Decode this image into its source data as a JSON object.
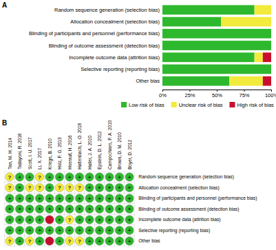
{
  "chart_data": [
    {
      "type": "bar",
      "title": "A",
      "orientation": "horizontal",
      "stacked": true,
      "legend": "bottom",
      "categories": [
        "Random sequence generation (selection bias)",
        "Allocation concealment (selection bias)",
        "Blinding of participants and personnel (performance bias)",
        "Blinding of outcome assessment (detection bias)",
        "Incomplete outcome data (attrition bias)",
        "Selective reporting (reporting bias)",
        "Other bias"
      ],
      "series": [
        {
          "name": "Low risk of bias",
          "color": "#2eb82e",
          "values": [
            84.6,
            53.8,
            100,
            100,
            84.6,
            100,
            61.5
          ]
        },
        {
          "name": "Unclear risk of bias",
          "color": "#f2ea3c",
          "values": [
            15.4,
            46.2,
            0,
            0,
            7.7,
            0,
            30.8
          ]
        },
        {
          "name": "High risk of bias",
          "color": "#c8102e",
          "values": [
            0,
            0,
            0,
            0,
            7.7,
            0,
            7.7
          ]
        }
      ],
      "xlim": [
        0,
        100
      ],
      "xticks": [
        {
          "value": 0,
          "label": "0%"
        },
        {
          "value": 25,
          "label": "25%"
        },
        {
          "value": 50,
          "label": "50%"
        },
        {
          "value": 75,
          "label": "75%"
        },
        {
          "value": 100,
          "label": "100%"
        }
      ]
    },
    {
      "type": "summary",
      "title": "B",
      "columns": [
        "Tan, M. H. 2014",
        "Tadayoni, R. 2016",
        "Scott, I. U. 2017",
        "Li, X. 2017",
        "Kriege, B. 2010",
        "Holz, F. G. 2013",
        "Hoerauf, H. 2016",
        "Hattenbach, L. O. 2018",
        "Haller, J. A. 2010",
        "Epstein, D. L. 2012",
        "Campochiaro, P. A. 2010",
        "Brown, D. M. 2010",
        "Boyer, D. 2012"
      ],
      "rows": [
        "Random sequence generation (selection bias)",
        "Allocation concealment (selection bias)",
        "Blinding of participants and personnel (performance bias)",
        "Blinding of outcome assessment (detection bias)",
        "Incomplete outcome data (attrition bias)",
        "Selective reporting (reporting bias)",
        "Other bias"
      ],
      "cells": [
        [
          "?",
          "+",
          "+",
          "?",
          "+",
          "+",
          "+",
          "+",
          "+",
          "+",
          "+",
          "+",
          "+"
        ],
        [
          "?",
          "+",
          "?",
          "?",
          "+",
          "?",
          "?",
          "?",
          "+",
          "+",
          "+",
          "+",
          "+"
        ],
        [
          "+",
          "+",
          "+",
          "+",
          "+",
          "+",
          "+",
          "+",
          "+",
          "+",
          "+",
          "+",
          "+"
        ],
        [
          "+",
          "+",
          "+",
          "+",
          "+",
          "+",
          "+",
          "+",
          "+",
          "+",
          "+",
          "+",
          "+"
        ],
        [
          "+",
          "+",
          "+",
          "+",
          "-",
          "+",
          "?",
          "+",
          "+",
          "+",
          "+",
          "+",
          "+"
        ],
        [
          "+",
          "+",
          "+",
          "+",
          "+",
          "+",
          "+",
          "+",
          "+",
          "+",
          "+",
          "+",
          "+"
        ],
        [
          "?",
          "+",
          "?",
          "+",
          "-",
          "+",
          "?",
          "?",
          "+",
          "+",
          "+",
          "+",
          "+"
        ]
      ],
      "colors": [
        [
          "#f2ea3c",
          "#2eb82e",
          "#2eb82e",
          "#f2ea3c",
          "#2eb82e",
          "#2eb82e",
          "#2eb82e",
          "#2eb82e",
          "#2eb82e",
          "#2eb82e",
          "#2eb82e",
          "#2eb82e",
          "#2eb82e"
        ],
        [
          "#f2ea3c",
          "#2eb82e",
          "#f2ea3c",
          "#f2ea3c",
          "#2eb82e",
          "#f2ea3c",
          "#f2ea3c",
          "#f2ea3c",
          "#2eb82e",
          "#2eb82e",
          "#2eb82e",
          "#2eb82e",
          "#2eb82e"
        ],
        [
          "#2eb82e",
          "#2eb82e",
          "#2eb82e",
          "#2eb82e",
          "#2eb82e",
          "#2eb82e",
          "#2eb82e",
          "#2eb82e",
          "#2eb82e",
          "#2eb82e",
          "#2eb82e",
          "#2eb82e",
          "#2eb82e"
        ],
        [
          "#2eb82e",
          "#2eb82e",
          "#2eb82e",
          "#2eb82e",
          "#2eb82e",
          "#2eb82e",
          "#2eb82e",
          "#2eb82e",
          "#2eb82e",
          "#2eb82e",
          "#2eb82e",
          "#2eb82e",
          "#2eb82e"
        ],
        [
          "#2eb82e",
          "#2eb82e",
          "#2eb82e",
          "#2eb82e",
          "#c8102e",
          "#2eb82e",
          "#f2ea3c",
          "#2eb82e",
          "#2eb82e",
          "#2eb82e",
          "#2eb82e",
          "#2eb82e",
          "#2eb82e"
        ],
        [
          "#2eb82e",
          "#2eb82e",
          "#2eb82e",
          "#2eb82e",
          "#2eb82e",
          "#2eb82e",
          "#2eb82e",
          "#2eb82e",
          "#2eb82e",
          "#2eb82e",
          "#2eb82e",
          "#2eb82e",
          "#2eb82e"
        ],
        [
          "#f2ea3c",
          "#2eb82e",
          "#f2ea3c",
          "#2eb82e",
          "#c8102e",
          "#2eb82e",
          "#f2ea3c",
          "#f2ea3c",
          "#2eb82e",
          "#2eb82e",
          "#2eb82e",
          "#2eb82e",
          "#2eb82e"
        ]
      ]
    }
  ]
}
